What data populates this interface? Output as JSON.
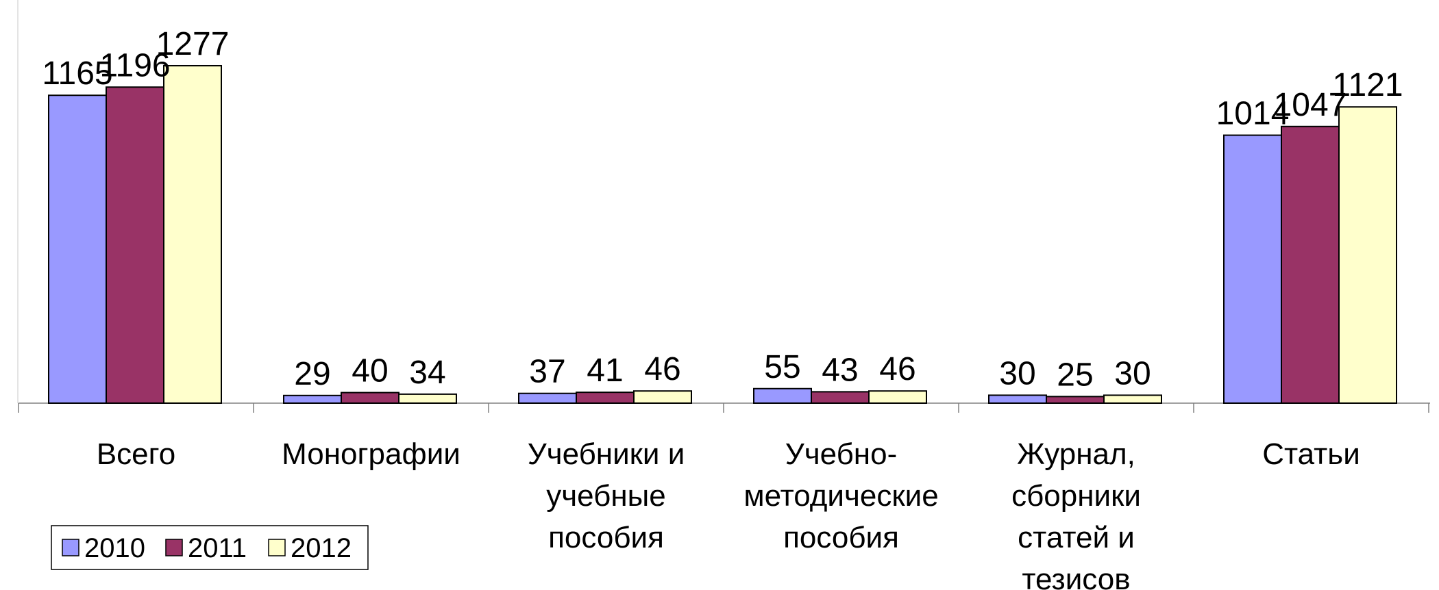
{
  "chart_data": {
    "type": "bar",
    "categories": [
      [
        "Всего"
      ],
      [
        "Монографии"
      ],
      [
        "Учебники и",
        "учебные",
        "пособия"
      ],
      [
        "Учебно-",
        "методические",
        "пособия"
      ],
      [
        "Журнал,",
        "сборники",
        "статей и",
        "тезисов"
      ],
      [
        "Статьи"
      ]
    ],
    "series": [
      {
        "name": "2010",
        "color": "#9999FF",
        "values": [
          1165,
          29,
          37,
          55,
          30,
          1014
        ]
      },
      {
        "name": "2011",
        "color": "#993366",
        "values": [
          1196,
          40,
          41,
          43,
          25,
          1047
        ]
      },
      {
        "name": "2012",
        "color": "#FFFFCC",
        "values": [
          1277,
          34,
          46,
          46,
          30,
          1121
        ]
      }
    ],
    "ylim": [
      0,
      1277
    ],
    "grid": false,
    "legend_position": "bottom-left",
    "data_labels": true
  }
}
